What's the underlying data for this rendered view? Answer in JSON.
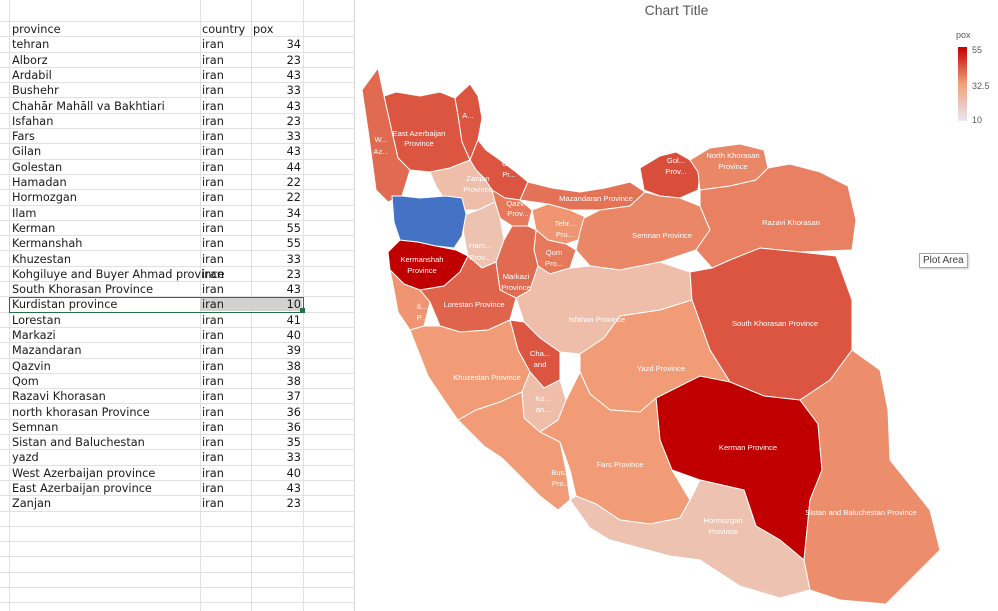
{
  "sheet": {
    "headers": {
      "province": "province",
      "country": "country",
      "pox": "pox"
    },
    "rows": [
      {
        "province": "tehran",
        "country": "iran",
        "pox": 34
      },
      {
        "province": "Alborz",
        "country": "iran",
        "pox": 23
      },
      {
        "province": "Ardabil",
        "country": "iran",
        "pox": 43
      },
      {
        "province": "Bushehr",
        "country": "iran",
        "pox": 33
      },
      {
        "province": "Chahār Mahāll va Bakhtiari",
        "country": "iran",
        "pox": 43
      },
      {
        "province": "Isfahan",
        "country": "iran",
        "pox": 23
      },
      {
        "province": "Fars",
        "country": "iran",
        "pox": 33
      },
      {
        "province": "Gilan",
        "country": "iran",
        "pox": 43
      },
      {
        "province": "Golestan",
        "country": "iran",
        "pox": 44
      },
      {
        "province": "Hamadan",
        "country": "iran",
        "pox": 22
      },
      {
        "province": "Hormozgan",
        "country": "iran",
        "pox": 22
      },
      {
        "province": "Ilam",
        "country": "iran",
        "pox": 34
      },
      {
        "province": "Kerman",
        "country": "iran",
        "pox": 55
      },
      {
        "province": "Kermanshah",
        "country": "iran",
        "pox": 55
      },
      {
        "province": "Khuzestan",
        "country": "iran",
        "pox": 33
      },
      {
        "province": "Kohgiluye and Buyer Ahmad province",
        "country": "iran",
        "pox": 23
      },
      {
        "province": "South Khorasan Province",
        "country": "iran",
        "pox": 43
      },
      {
        "province": "Kurdistan province",
        "country": "iran",
        "pox": 10
      },
      {
        "province": "Lorestan",
        "country": "iran",
        "pox": 41
      },
      {
        "province": "Markazi",
        "country": "iran",
        "pox": 40
      },
      {
        "province": "Mazandaran",
        "country": "iran",
        "pox": 39
      },
      {
        "province": "Qazvin",
        "country": "iran",
        "pox": 38
      },
      {
        "province": "Qom",
        "country": "iran",
        "pox": 38
      },
      {
        "province": "Razavi Khorasan",
        "country": "iran",
        "pox": 37
      },
      {
        "province": "north khorasan Province",
        "country": "iran",
        "pox": 36
      },
      {
        "province": "Semnan",
        "country": "iran",
        "pox": 36
      },
      {
        "province": "Sistan and Baluchestan",
        "country": "iran",
        "pox": 35
      },
      {
        "province": "yazd",
        "country": "iran",
        "pox": 33
      },
      {
        "province": "West Azerbaijan province",
        "country": "iran",
        "pox": 40
      },
      {
        "province": "East Azerbaijan province",
        "country": "iran",
        "pox": 43
      },
      {
        "province": "Zanjan",
        "country": "iran",
        "pox": 23
      }
    ],
    "selected_row_index": 17
  },
  "chart_data": {
    "type": "choropleth-map",
    "title": "Chart Title",
    "legend": {
      "title": "pox",
      "max": "55",
      "mid": "32.5",
      "min": "10",
      "placement": "top-right"
    },
    "color_scale": {
      "min_color": "#e8e8ef",
      "mid_color": "#f2a079",
      "max_color": "#c00000",
      "outlier_color": "#4472c4"
    },
    "regions": [
      {
        "label": "East Azerbaijan Province",
        "value": 43
      },
      {
        "label": "A...",
        "value": 43
      },
      {
        "label": "W... Az...",
        "value": 40
      },
      {
        "label": "Gi... Pr...",
        "value": 43
      },
      {
        "label": "Zanjan Province",
        "value": 23
      },
      {
        "label": "Gol... Prov...",
        "value": 44
      },
      {
        "label": "North Khorasan Province",
        "value": 36
      },
      {
        "label": "Mazandaran Province",
        "value": 39
      },
      {
        "label": "Qazv... Prov...",
        "value": 38
      },
      {
        "label": "Tehr... Pro...",
        "value": 34
      },
      {
        "label": "Semnan Province",
        "value": 36
      },
      {
        "label": "Razavi Khorasan",
        "value": 37
      },
      {
        "label": "Ham... Prov...",
        "value": 22
      },
      {
        "label": "Kermanshah Province",
        "value": 55
      },
      {
        "label": "Qom Pro...",
        "value": 38
      },
      {
        "label": "Markazi Province",
        "value": 40
      },
      {
        "label": "Il... P...",
        "value": 34
      },
      {
        "label": "Lorestan Province",
        "value": 41
      },
      {
        "label": "Isfahan Province",
        "value": 23
      },
      {
        "label": "South Khorasan Province",
        "value": 43
      },
      {
        "label": "Cha... and",
        "value": 43
      },
      {
        "label": "Khuzestan Province",
        "value": 33
      },
      {
        "label": "Yazd Province",
        "value": 33
      },
      {
        "label": "Ko... an...",
        "value": 23
      },
      {
        "label": "Kerman Province",
        "value": 55
      },
      {
        "label": "Bus... Pro...",
        "value": 33
      },
      {
        "label": "Fars Province",
        "value": 33
      },
      {
        "label": "Hormozgan Province",
        "value": 22
      },
      {
        "label": "Sistan and Baluchestan Province",
        "value": 35
      },
      {
        "label": "",
        "value": 10
      }
    ]
  },
  "tooltip": {
    "text": "Plot Area"
  }
}
